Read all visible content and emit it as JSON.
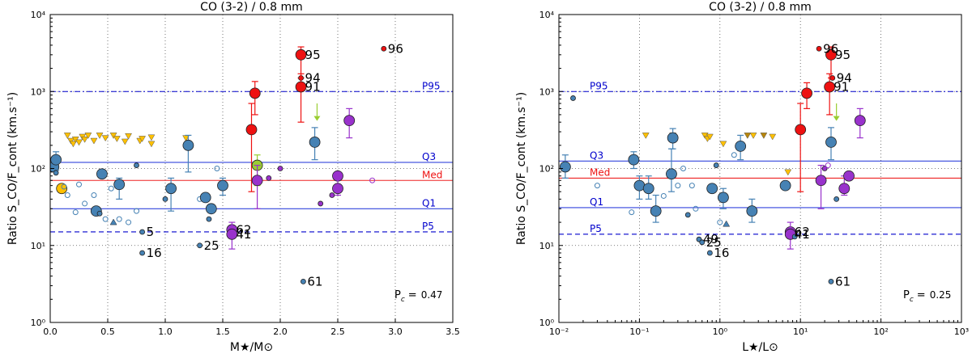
{
  "chart_data": [
    {
      "type": "scatter",
      "title": "CO (3-2) / 0.8 mm",
      "xlabel": "M★/M⊙",
      "ylabel": "Ratio S_CO/F_cont (km.s⁻¹)",
      "xscale": "linear",
      "yscale": "log",
      "xlim": [
        0,
        3.5
      ],
      "ylim": [
        1,
        10000
      ],
      "xticks": [
        "0.0",
        "0.5",
        "1.0",
        "1.5",
        "2.0",
        "2.5",
        "3.0",
        "3.5"
      ],
      "yticks": [
        "10⁰",
        "10¹",
        "10²",
        "10³",
        "10⁴"
      ],
      "grid": true,
      "reference_lines": [
        {
          "label": "P95",
          "value": 1000,
          "style": "dashdot",
          "color": "#0000cc"
        },
        {
          "label": "Q3",
          "value": 120,
          "style": "solid",
          "color": "#3344dd"
        },
        {
          "label": "Med",
          "value": 70,
          "style": "solid",
          "color": "#ee2222"
        },
        {
          "label": "Q1",
          "value": 30,
          "style": "solid",
          "color": "#3344dd"
        },
        {
          "label": "P5",
          "value": 15,
          "style": "dashed",
          "color": "#0000cc"
        }
      ],
      "stat_label": "P",
      "stat_sub": "c",
      "stat_value": "0.47",
      "points": [
        {
          "x": 0.03,
          "y": 105,
          "size": "l",
          "color": "blue"
        },
        {
          "x": 0.05,
          "y": 130,
          "size": "l",
          "color": "blue",
          "err": [
            95,
            165
          ]
        },
        {
          "x": 0.05,
          "y": 88,
          "size": "s",
          "color": "blue"
        },
        {
          "x": 0.1,
          "y": 55,
          "size": "l",
          "color": "yellow"
        },
        {
          "x": 0.12,
          "y": 58,
          "size": "s",
          "color": "open"
        },
        {
          "x": 0.15,
          "y": 45,
          "size": "s",
          "color": "open"
        },
        {
          "x": 0.25,
          "y": 62,
          "size": "s",
          "color": "open"
        },
        {
          "x": 0.3,
          "y": 35,
          "size": "s",
          "color": "open"
        },
        {
          "x": 0.22,
          "y": 27,
          "size": "s",
          "color": "open"
        },
        {
          "x": 0.38,
          "y": 45,
          "size": "s",
          "color": "open"
        },
        {
          "x": 0.4,
          "y": 28,
          "size": "l",
          "color": "blue"
        },
        {
          "x": 0.43,
          "y": 26,
          "size": "s",
          "color": "blue"
        },
        {
          "x": 0.45,
          "y": 85,
          "size": "l",
          "color": "blue"
        },
        {
          "x": 0.48,
          "y": 22,
          "size": "s",
          "color": "open"
        },
        {
          "x": 0.53,
          "y": 55,
          "size": "s",
          "color": "open"
        },
        {
          "x": 0.55,
          "y": 20,
          "size": "s",
          "color": "tri"
        },
        {
          "x": 0.6,
          "y": 62,
          "size": "l",
          "color": "blue",
          "err": [
            40,
            75
          ]
        },
        {
          "x": 0.6,
          "y": 22,
          "size": "s",
          "color": "open"
        },
        {
          "x": 0.68,
          "y": 20,
          "size": "s",
          "color": "open"
        },
        {
          "x": 0.75,
          "y": 28,
          "size": "s",
          "color": "open"
        },
        {
          "x": 0.8,
          "y": 15,
          "size": "s",
          "color": "blue",
          "label": "5"
        },
        {
          "x": 0.8,
          "y": 8,
          "size": "s",
          "color": "blue",
          "label": "16"
        },
        {
          "x": 0.75,
          "y": 110,
          "size": "s",
          "color": "blue"
        },
        {
          "x": 1.0,
          "y": 40,
          "size": "s",
          "color": "blue"
        },
        {
          "x": 1.05,
          "y": 55,
          "size": "l",
          "color": "blue",
          "err": [
            28,
            75
          ]
        },
        {
          "x": 1.2,
          "y": 200,
          "size": "l",
          "color": "blue",
          "err": [
            90,
            270
          ]
        },
        {
          "x": 1.3,
          "y": 40,
          "size": "s",
          "color": "open"
        },
        {
          "x": 1.35,
          "y": 42,
          "size": "l",
          "color": "blue"
        },
        {
          "x": 1.38,
          "y": 22,
          "size": "s",
          "color": "blue"
        },
        {
          "x": 1.4,
          "y": 30,
          "size": "l",
          "color": "blue"
        },
        {
          "x": 1.5,
          "y": 60,
          "size": "l",
          "color": "blue",
          "err": [
            45,
            75
          ]
        },
        {
          "x": 1.45,
          "y": 100,
          "size": "s",
          "color": "open"
        },
        {
          "x": 1.3,
          "y": 10,
          "size": "s",
          "color": "blue",
          "label": "25"
        },
        {
          "x": 1.58,
          "y": 16,
          "size": "l",
          "color": "purple",
          "label": "62"
        },
        {
          "x": 1.58,
          "y": 14,
          "size": "l",
          "color": "purple",
          "label": "41",
          "err": [
            9,
            20
          ]
        },
        {
          "x": 1.75,
          "y": 320,
          "size": "l",
          "color": "red",
          "err": [
            50,
            700
          ]
        },
        {
          "x": 1.78,
          "y": 950,
          "size": "l",
          "color": "red",
          "err": [
            500,
            1350
          ]
        },
        {
          "x": 1.8,
          "y": 110,
          "size": "l",
          "color": "green",
          "err": [
            60,
            150
          ]
        },
        {
          "x": 1.8,
          "y": 70,
          "size": "l",
          "color": "purple",
          "err": [
            30,
            110
          ]
        },
        {
          "x": 1.9,
          "y": 75,
          "size": "s",
          "color": "purple"
        },
        {
          "x": 2.0,
          "y": 100,
          "size": "s",
          "color": "purple"
        },
        {
          "x": 2.18,
          "y": 3000,
          "size": "l",
          "color": "red",
          "label": "95",
          "err": [
            1500,
            3800
          ]
        },
        {
          "x": 2.18,
          "y": 1500,
          "size": "s",
          "color": "red",
          "label": "94"
        },
        {
          "x": 2.18,
          "y": 1150,
          "size": "l",
          "color": "red",
          "label": "91",
          "err": [
            400,
            1700
          ]
        },
        {
          "x": 2.2,
          "y": 3.4,
          "size": "s",
          "color": "blue",
          "label": "61"
        },
        {
          "x": 2.3,
          "y": 220,
          "size": "l",
          "color": "blue",
          "err": [
            130,
            340
          ]
        },
        {
          "x": 2.35,
          "y": 35,
          "size": "s",
          "color": "purple"
        },
        {
          "x": 2.5,
          "y": 80,
          "size": "l",
          "color": "purple"
        },
        {
          "x": 2.5,
          "y": 55,
          "size": "l",
          "color": "purple",
          "err": [
            45,
            80
          ]
        },
        {
          "x": 2.45,
          "y": 45,
          "size": "s",
          "color": "purple"
        },
        {
          "x": 2.6,
          "y": 420,
          "size": "l",
          "color": "purple",
          "err": [
            250,
            600
          ]
        },
        {
          "x": 2.8,
          "y": 70,
          "size": "s",
          "color": "openpurple"
        },
        {
          "x": 2.9,
          "y": 3600,
          "size": "s",
          "color": "red",
          "label": "96"
        }
      ],
      "upper_limits": [
        {
          "x": 0.15,
          "y": 270
        },
        {
          "x": 0.18,
          "y": 230
        },
        {
          "x": 0.2,
          "y": 210
        },
        {
          "x": 0.22,
          "y": 240
        },
        {
          "x": 0.25,
          "y": 220
        },
        {
          "x": 0.28,
          "y": 260
        },
        {
          "x": 0.3,
          "y": 240
        },
        {
          "x": 0.33,
          "y": 270
        },
        {
          "x": 0.38,
          "y": 230
        },
        {
          "x": 0.43,
          "y": 270
        },
        {
          "x": 0.48,
          "y": 250
        },
        {
          "x": 0.55,
          "y": 270
        },
        {
          "x": 0.58,
          "y": 245
        },
        {
          "x": 0.65,
          "y": 225
        },
        {
          "x": 0.68,
          "y": 265
        },
        {
          "x": 0.78,
          "y": 230
        },
        {
          "x": 0.8,
          "y": 245
        },
        {
          "x": 0.88,
          "y": 255
        },
        {
          "x": 1.18,
          "y": 250
        },
        {
          "x": 0.88,
          "y": 210
        }
      ]
    },
    {
      "type": "scatter",
      "title": "CO (3-2) / 0.8 mm",
      "xlabel": "L★/L⊙",
      "ylabel": "Ratio S_CO/F_cont (km.s⁻¹)",
      "xscale": "log",
      "yscale": "log",
      "xlim": [
        0.01,
        1000
      ],
      "ylim": [
        1,
        10000
      ],
      "xticks": [
        "10⁻²",
        "10⁻¹",
        "10⁰",
        "10¹",
        "10²",
        "10³"
      ],
      "yticks": [
        "10⁰",
        "10¹",
        "10²",
        "10³",
        "10⁴"
      ],
      "grid": true,
      "reference_lines": [
        {
          "label": "P95",
          "value": 1000,
          "style": "dashdot",
          "color": "#0000cc"
        },
        {
          "label": "Q3",
          "value": 125,
          "style": "solid",
          "color": "#3344dd"
        },
        {
          "label": "Med",
          "value": 75,
          "style": "solid",
          "color": "#ee2222"
        },
        {
          "label": "Q1",
          "value": 31,
          "style": "solid",
          "color": "#3344dd"
        },
        {
          "label": "P5",
          "value": 14,
          "style": "dashed",
          "color": "#0000cc"
        }
      ],
      "stat_label": "P",
      "stat_sub": "c",
      "stat_value": "0.25",
      "points": [
        {
          "x": 0.012,
          "y": 105,
          "size": "l",
          "color": "blue",
          "err": [
            75,
            150
          ]
        },
        {
          "x": 0.015,
          "y": 820,
          "size": "s",
          "color": "blue"
        },
        {
          "x": 0.03,
          "y": 60,
          "size": "s",
          "color": "open"
        },
        {
          "x": 0.085,
          "y": 130,
          "size": "l",
          "color": "blue",
          "err": [
            100,
            165
          ]
        },
        {
          "x": 0.08,
          "y": 27,
          "size": "s",
          "color": "open"
        },
        {
          "x": 0.1,
          "y": 60,
          "size": "l",
          "color": "blue",
          "err": [
            40,
            80
          ]
        },
        {
          "x": 0.13,
          "y": 55,
          "size": "l",
          "color": "blue",
          "err": [
            40,
            80
          ]
        },
        {
          "x": 0.16,
          "y": 28,
          "size": "l",
          "color": "blue",
          "err": [
            20,
            45
          ]
        },
        {
          "x": 0.2,
          "y": 44,
          "size": "s",
          "color": "open"
        },
        {
          "x": 0.25,
          "y": 85,
          "size": "l",
          "color": "blue",
          "err": [
            50,
            180
          ]
        },
        {
          "x": 0.26,
          "y": 250,
          "size": "l",
          "color": "blue",
          "err": [
            180,
            330
          ]
        },
        {
          "x": 0.3,
          "y": 60,
          "size": "s",
          "color": "open"
        },
        {
          "x": 0.35,
          "y": 100,
          "size": "s",
          "color": "open"
        },
        {
          "x": 0.4,
          "y": 25,
          "size": "s",
          "color": "blue"
        },
        {
          "x": 0.45,
          "y": 60,
          "size": "s",
          "color": "open"
        },
        {
          "x": 0.5,
          "y": 30,
          "size": "s",
          "color": "open"
        },
        {
          "x": 0.55,
          "y": 12,
          "size": "s",
          "color": "blue",
          "label": "49"
        },
        {
          "x": 0.6,
          "y": 11,
          "size": "s",
          "color": "blue",
          "label": "25"
        },
        {
          "x": 0.75,
          "y": 8,
          "size": "s",
          "color": "blue",
          "label": "16"
        },
        {
          "x": 0.8,
          "y": 55,
          "size": "l",
          "color": "blue"
        },
        {
          "x": 0.9,
          "y": 110,
          "size": "s",
          "color": "blue"
        },
        {
          "x": 1.0,
          "y": 20,
          "size": "s",
          "color": "open"
        },
        {
          "x": 1.1,
          "y": 42,
          "size": "l",
          "color": "blue",
          "err": [
            30,
            55
          ]
        },
        {
          "x": 1.2,
          "y": 19,
          "size": "s",
          "color": "tri"
        },
        {
          "x": 1.5,
          "y": 150,
          "size": "s",
          "color": "open"
        },
        {
          "x": 1.8,
          "y": 195,
          "size": "l",
          "color": "blue",
          "err": [
            130,
            270
          ]
        },
        {
          "x": 2.5,
          "y": 28,
          "size": "l",
          "color": "blue",
          "err": [
            20,
            40
          ]
        },
        {
          "x": 6.5,
          "y": 60,
          "size": "l",
          "color": "blue"
        },
        {
          "x": 7.5,
          "y": 15,
          "size": "l",
          "color": "purple",
          "label": "62"
        },
        {
          "x": 7.5,
          "y": 14,
          "size": "l",
          "color": "purple",
          "label": "41",
          "err": [
            9,
            20
          ]
        },
        {
          "x": 8.5,
          "y": 13,
          "size": "s",
          "color": "blue"
        },
        {
          "x": 10,
          "y": 320,
          "size": "l",
          "color": "red",
          "err": [
            50,
            700
          ]
        },
        {
          "x": 12,
          "y": 950,
          "size": "l",
          "color": "red",
          "err": [
            600,
            1300
          ]
        },
        {
          "x": 17,
          "y": 3600,
          "size": "s",
          "color": "red",
          "label": "96"
        },
        {
          "x": 18,
          "y": 70,
          "size": "l",
          "color": "purple",
          "err": [
            30,
            110
          ]
        },
        {
          "x": 20,
          "y": 100,
          "size": "s",
          "color": "purple"
        },
        {
          "x": 24,
          "y": 3000,
          "size": "l",
          "color": "red",
          "label": "95",
          "err": [
            1500,
            3800
          ]
        },
        {
          "x": 25,
          "y": 1500,
          "size": "s",
          "color": "red",
          "label": "94"
        },
        {
          "x": 23,
          "y": 1150,
          "size": "l",
          "color": "red",
          "label": "91",
          "err": [
            500,
            1700
          ]
        },
        {
          "x": 24,
          "y": 220,
          "size": "l",
          "color": "blue",
          "err": [
            130,
            340
          ]
        },
        {
          "x": 24,
          "y": 3.4,
          "size": "s",
          "color": "blue",
          "label": "61"
        },
        {
          "x": 28,
          "y": 40,
          "size": "s",
          "color": "blue"
        },
        {
          "x": 35,
          "y": 55,
          "size": "l",
          "color": "purple",
          "err": [
            45,
            80
          ]
        },
        {
          "x": 40,
          "y": 80,
          "size": "l",
          "color": "purple"
        },
        {
          "x": 55,
          "y": 420,
          "size": "l",
          "color": "purple",
          "err": [
            250,
            600
          ]
        },
        {
          "x": 22,
          "y": 110,
          "size": "s",
          "color": "openpurple"
        }
      ],
      "upper_limits": [
        {
          "x": 0.12,
          "y": 270
        },
        {
          "x": 0.26,
          "y": 270
        },
        {
          "x": 0.65,
          "y": 270
        },
        {
          "x": 0.7,
          "y": 245
        },
        {
          "x": 0.75,
          "y": 260
        },
        {
          "x": 1.1,
          "y": 210
        },
        {
          "x": 2.2,
          "y": 270
        },
        {
          "x": 2.6,
          "y": 270
        },
        {
          "x": 3.5,
          "y": 270
        },
        {
          "x": 4.5,
          "y": 260
        },
        {
          "x": 7,
          "y": 90
        }
      ]
    }
  ]
}
